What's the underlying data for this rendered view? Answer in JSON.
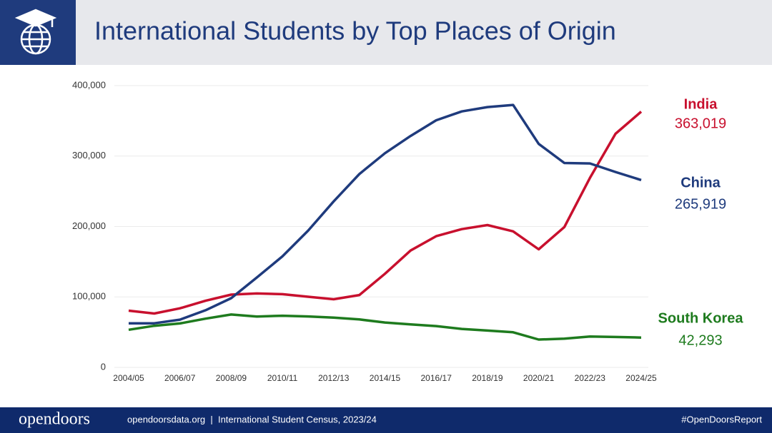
{
  "chart_data": {
    "type": "line",
    "title": "International Students by Top Places of Origin",
    "categories": [
      "2004/05",
      null,
      "2006/07",
      null,
      "2008/09",
      null,
      "2010/11",
      null,
      "2012/13",
      null,
      "2014/15",
      null,
      "2016/17",
      null,
      "2018/19",
      null,
      "2020/21",
      null,
      "2022/23",
      null,
      "2024/25"
    ],
    "series": [
      {
        "name": "India",
        "color": "#c8102e",
        "values": [
          80466,
          76503,
          83833,
          94563,
          103260,
          104897,
          103895,
          100270,
          96754,
          102673,
          132888,
          165918,
          186267,
          196271,
          202014,
          193124,
          167582,
          199182,
          268923,
          331602,
          363019
        ],
        "value_labels": [
          null,
          null,
          null,
          null,
          null,
          null,
          null,
          null,
          null,
          null,
          null,
          null,
          null,
          null,
          null,
          null,
          null,
          null,
          null,
          null,
          "363,019"
        ]
      },
      {
        "name": "China",
        "color": "#1f3b7d",
        "values": [
          62523,
          62582,
          67723,
          81127,
          98235,
          127628,
          157558,
          194029,
          235597,
          274439,
          304040,
          328547,
          350755,
          363341,
          369548,
          372532,
          317299,
          290086,
          289526,
          277398,
          265919
        ],
        "value_labels": [
          null,
          null,
          null,
          null,
          null,
          null,
          null,
          null,
          null,
          null,
          null,
          null,
          null,
          null,
          null,
          null,
          null,
          null,
          null,
          null,
          "265,919"
        ]
      },
      {
        "name": "South Korea",
        "color": "#1e7b1e",
        "values": [
          53358,
          59022,
          62392,
          69124,
          75065,
          72153,
          73351,
          72295,
          70627,
          68047,
          63710,
          61007,
          58663,
          54555,
          52250,
          49809,
          39491,
          40755,
          43847,
          43149,
          42293
        ],
        "value_labels": [
          null,
          null,
          null,
          null,
          null,
          null,
          null,
          null,
          null,
          null,
          null,
          null,
          null,
          null,
          null,
          null,
          null,
          null,
          null,
          null,
          "42,293"
        ]
      }
    ],
    "ylim": [
      0,
      400000
    ],
    "yticks": [
      0,
      {
        "value": 100000,
        "label": "100,000"
      },
      {
        "value": 200000,
        "label": "200,000"
      },
      {
        "value": 300000,
        "label": "300,000"
      },
      {
        "value": 400000,
        "label": "400,000"
      }
    ],
    "grid": true
  },
  "footer": {
    "logo": "opendoors",
    "source": "opendoorsdata.org  |  International Student Census, 2023/24",
    "hashtag": "#OpenDoorsReport"
  }
}
